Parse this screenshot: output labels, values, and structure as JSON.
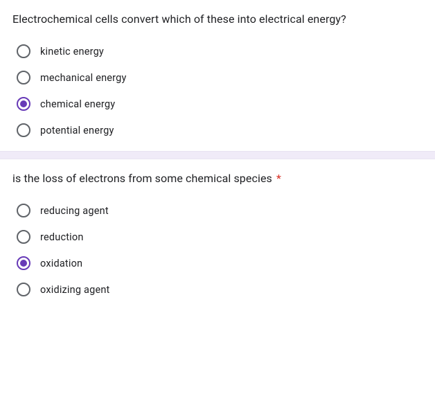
{
  "accent_color": "#673ab7",
  "required_color": "#d93025",
  "radio_border_color": "#5f6368",
  "divider_color": "#f0ebf8",
  "questions": [
    {
      "text": "Electrochemical cells convert which of these into electrical energy?",
      "required": false,
      "options": [
        {
          "label": "kinetic energy",
          "selected": false
        },
        {
          "label": "mechanical energy",
          "selected": false
        },
        {
          "label": "chemical energy",
          "selected": true
        },
        {
          "label": "potential energy",
          "selected": false
        }
      ]
    },
    {
      "text": "is the loss of electrons from some chemical species",
      "required": true,
      "options": [
        {
          "label": "reducing agent",
          "selected": false
        },
        {
          "label": "reduction",
          "selected": false
        },
        {
          "label": "oxidation",
          "selected": true
        },
        {
          "label": "oxidizing agent",
          "selected": false
        }
      ]
    }
  ]
}
